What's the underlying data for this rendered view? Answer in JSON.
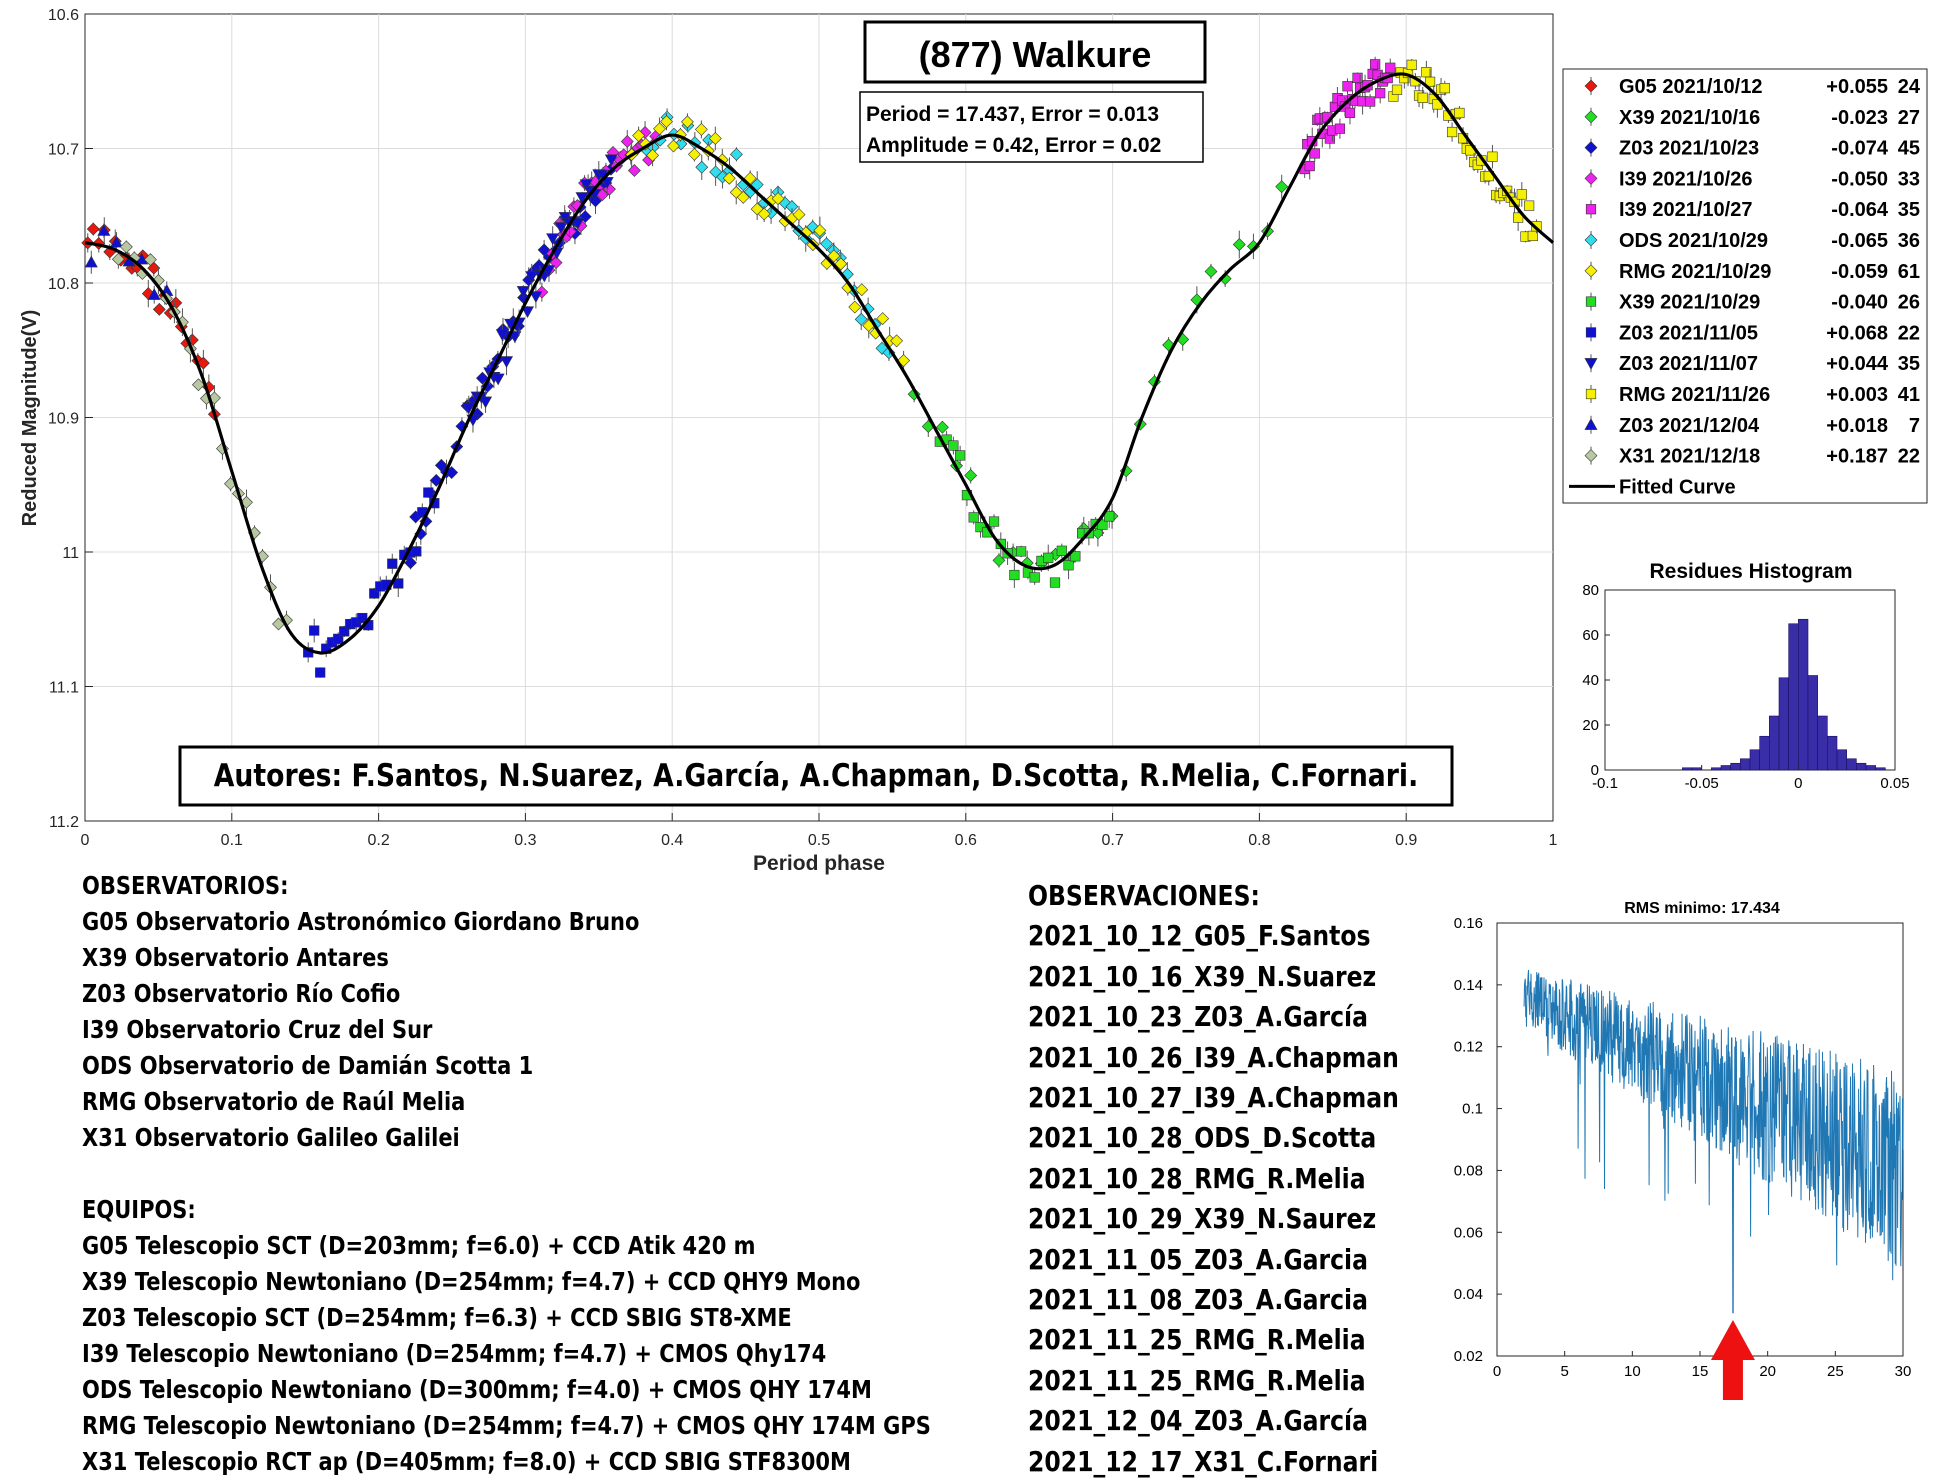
{
  "chart_data": [
    {
      "type": "scatter",
      "title": "(877) Walkure",
      "fit_info": [
        "Period =  17.437, Error = 0.013",
        "Amplitude = 0.42, Error = 0.02"
      ],
      "authors": "Autores: F.Santos, N.Suarez, A.García, A.Chapman, D.Scotta, R.Melia, C.Fornari.",
      "xlabel": "Period phase",
      "ylabel": "Reduced Magnitude(V)",
      "xlim": [
        0,
        1
      ],
      "ylim": [
        10.6,
        11.2
      ],
      "y_reversed": true,
      "xticks": [
        0,
        0.1,
        0.2,
        0.3,
        0.4,
        0.5,
        0.6,
        0.7,
        0.8,
        0.9,
        1
      ],
      "xtick_labels": [
        "0",
        "0.1",
        "0.2",
        "0.3",
        "0.4",
        "0.5",
        "0.6",
        "0.7",
        "0.8",
        "0.9",
        "1"
      ],
      "yticks": [
        10.6,
        10.7,
        10.8,
        10.9,
        11.0,
        11.1,
        11.2
      ],
      "ytick_labels": [
        "10.6",
        "10.7",
        "10.8",
        "10.9",
        "11",
        "11.1",
        "11.2"
      ],
      "grid": true,
      "legend_position": "right",
      "series": [
        {
          "name": "G05 2021/10/12",
          "offset": "+0.055",
          "count": "24",
          "color": "#e8180c",
          "marker": "diamond",
          "phase_range": [
            0.0,
            0.09
          ]
        },
        {
          "name": "X39 2021/10/16",
          "offset": "-0.023",
          "count": "27",
          "color": "#22dd22",
          "marker": "diamond",
          "phase_range": [
            0.56,
            0.82
          ]
        },
        {
          "name": "Z03 2021/10/23",
          "offset": "-0.074",
          "count": "45",
          "color": "#1010d0",
          "marker": "diamond",
          "phase_range": [
            0.22,
            0.36
          ]
        },
        {
          "name": "I39 2021/10/26",
          "offset": "-0.050",
          "count": "33",
          "color": "#ee22ee",
          "marker": "diamond",
          "phase_range": [
            0.31,
            0.39
          ]
        },
        {
          "name": "I39 2021/10/27",
          "offset": "-0.064",
          "count": "35",
          "color": "#ee22ee",
          "marker": "square",
          "phase_range": [
            0.83,
            0.89
          ]
        },
        {
          "name": "ODS 2021/10/29",
          "offset": "-0.065",
          "count": "36",
          "color": "#30ddee",
          "marker": "diamond",
          "phase_range": [
            0.38,
            0.55
          ]
        },
        {
          "name": "RMG 2021/10/29",
          "offset": "-0.059",
          "count": "61",
          "color": "#f5f000",
          "marker": "diamond",
          "phase_range": [
            0.37,
            0.56
          ]
        },
        {
          "name": "X39 2021/10/29",
          "offset": "-0.040",
          "count": "26",
          "color": "#22dd22",
          "marker": "square",
          "phase_range": [
            0.58,
            0.7
          ]
        },
        {
          "name": "Z03 2021/11/05",
          "offset": "+0.068",
          "count": "22",
          "color": "#1010d0",
          "marker": "square",
          "phase_range": [
            0.15,
            0.24
          ]
        },
        {
          "name": "Z03 2021/11/07",
          "offset": "+0.044",
          "count": "35",
          "color": "#1010d0",
          "marker": "triangle-down",
          "phase_range": [
            0.26,
            0.36
          ]
        },
        {
          "name": "RMG 2021/11/26",
          "offset": "+0.003",
          "count": "41",
          "color": "#f5f000",
          "marker": "square",
          "phase_range": [
            0.89,
            0.99
          ]
        },
        {
          "name": "Z03 2021/12/04",
          "offset": "+0.018",
          "count": "7",
          "color": "#1010d0",
          "marker": "triangle-up",
          "phase_range": [
            0.0,
            0.06
          ]
        },
        {
          "name": "X31 2021/12/18",
          "offset": "+0.187",
          "count": "22",
          "color": "#b8c8a0",
          "marker": "diamond",
          "phase_range": [
            0.02,
            0.14
          ]
        }
      ],
      "fitted_curve_label": "Fitted Curve",
      "fitted_curve": {
        "x": [
          0,
          0.02,
          0.04,
          0.06,
          0.08,
          0.1,
          0.12,
          0.14,
          0.16,
          0.18,
          0.2,
          0.22,
          0.24,
          0.26,
          0.28,
          0.3,
          0.32,
          0.34,
          0.36,
          0.38,
          0.4,
          0.42,
          0.44,
          0.46,
          0.48,
          0.5,
          0.52,
          0.54,
          0.56,
          0.58,
          0.6,
          0.62,
          0.64,
          0.66,
          0.68,
          0.7,
          0.72,
          0.74,
          0.76,
          0.78,
          0.8,
          0.82,
          0.84,
          0.86,
          0.88,
          0.9,
          0.92,
          0.94,
          0.96,
          0.98,
          1.0
        ],
        "y": [
          10.77,
          10.775,
          10.79,
          10.82,
          10.87,
          10.94,
          11.01,
          11.06,
          11.075,
          11.065,
          11.04,
          11.0,
          10.955,
          10.905,
          10.86,
          10.815,
          10.775,
          10.74,
          10.715,
          10.7,
          10.69,
          10.7,
          10.715,
          10.735,
          10.755,
          10.775,
          10.8,
          10.835,
          10.87,
          10.91,
          10.95,
          10.99,
          11.01,
          11.01,
          10.99,
          10.96,
          10.9,
          10.85,
          10.815,
          10.79,
          10.77,
          10.73,
          10.69,
          10.665,
          10.65,
          10.645,
          10.66,
          10.69,
          10.72,
          10.75,
          10.77
        ]
      }
    },
    {
      "type": "bar",
      "title": "Residues Histogram",
      "xlim": [
        -0.1,
        0.05
      ],
      "ylim": [
        0,
        80
      ],
      "xtick_labels": [
        "-0.1",
        "-0.05",
        "0",
        "0.05"
      ],
      "ytick_labels": [
        "0",
        "20",
        "40",
        "60",
        "80"
      ],
      "bins": [
        -0.0575,
        -0.0525,
        -0.0475,
        -0.0425,
        -0.0375,
        -0.0325,
        -0.0275,
        -0.0225,
        -0.0175,
        -0.0125,
        -0.0075,
        -0.0025,
        0.0025,
        0.0075,
        0.0125,
        0.0175,
        0.0225,
        0.0275,
        0.0325,
        0.0375,
        0.0425
      ],
      "values": [
        1,
        1,
        0,
        1,
        2,
        3,
        5,
        9,
        15,
        24,
        41,
        65,
        67,
        42,
        24,
        15,
        9,
        5,
        3,
        2,
        1
      ],
      "color": "#3a2ea8"
    },
    {
      "type": "line",
      "title": "RMS minimo: 17.434",
      "xlim": [
        0,
        30
      ],
      "ylim": [
        0.02,
        0.16
      ],
      "xtick_labels": [
        "0",
        "5",
        "10",
        "15",
        "20",
        "25",
        "30"
      ],
      "ytick_labels": [
        "0.02",
        "0.04",
        "0.06",
        "0.08",
        "0.1",
        "0.12",
        "0.14",
        "0.16"
      ],
      "minimum": {
        "x": 17.434,
        "y": 0.034
      },
      "color": "#1f77b4",
      "arrow_color": "#ee1111"
    }
  ],
  "observatorios": {
    "heading": "OBSERVATORIOS:",
    "lines": [
      "G05 Observatorio Astronómico Giordano Bruno",
      "X39 Observatorio Antares",
      "Z03 Observatorio Río Cofio",
      "I39 Observatorio Cruz del Sur",
      "ODS Observatorio de Damián Scotta 1",
      "RMG Observatorio de Raúl Melia",
      "X31 Observatorio Galileo Galilei"
    ]
  },
  "equipos": {
    "heading": "EQUIPOS:",
    "lines": [
      "G05 Telescopio SCT (D=203mm; f=6.0) + CCD Atik 420 m",
      "X39 Telescopio Newtoniano (D=254mm; f=4.7) + CCD QHY9 Mono",
      "Z03 Telescopio SCT (D=254mm; f=6.3) + CCD SBIG ST8-XME",
      "I39 Telescopio Newtoniano (D=254mm; f=4.7) + CMOS Qhy174",
      "ODS Telescopio Newtoniano (D=300mm; f=4.0) + CMOS QHY 174M",
      "RMG Telescopio Newtoniano (D=254mm; f=4.7) + CMOS QHY 174M GPS",
      "X31 Telescopio RCT ap (D=405mm; f=8.0) + CCD SBIG STF8300M"
    ]
  },
  "observaciones": {
    "heading": "OBSERVACIONES:",
    "lines": [
      "2021_10_12_G05_F.Santos",
      "2021_10_16_X39_N.Suarez",
      "2021_10_23_Z03_A.García",
      "2021_10_26_I39_A.Chapman",
      "2021_10_27_I39_A.Chapman",
      "2021_10_28_ODS_D.Scotta",
      "2021_10_28_RMG_R.Melia",
      "2021_10_29_X39_N.Saurez",
      "2021_11_05_Z03_A.Garcia",
      "2021_11_08_Z03_A.Garcia",
      "2021_11_25_RMG_R.Melia",
      "2021_11_25_RMG_R.Melia",
      "2021_12_04_Z03_A.García",
      "2021_12_17_X31_C.Fornari"
    ]
  }
}
